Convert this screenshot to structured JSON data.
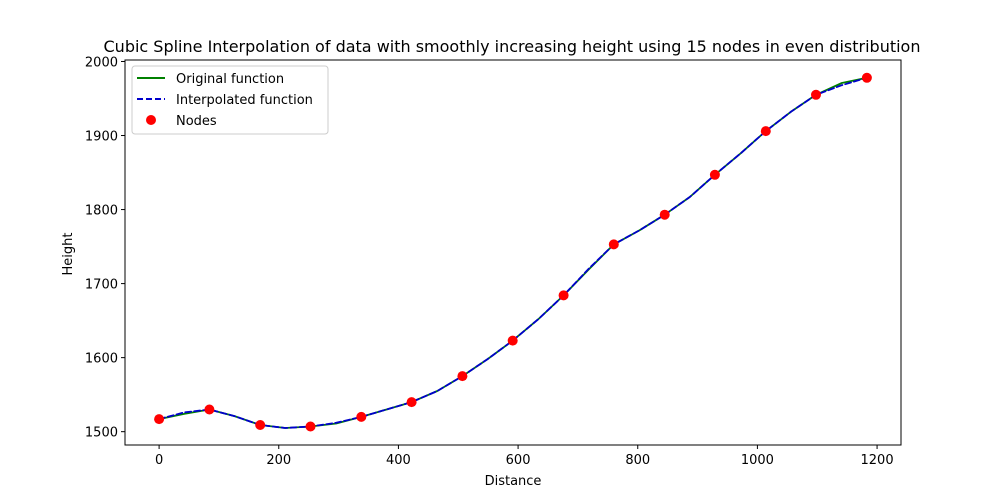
{
  "chart_data": {
    "type": "line",
    "title": "Cubic Spline Interpolation of data with smoothly increasing height using 15 nodes in even distribution",
    "xlabel": "Distance",
    "ylabel": "Height",
    "xlim": [
      -57,
      1240
    ],
    "ylim": [
      1482,
      2002
    ],
    "xticks": [
      0,
      200,
      400,
      600,
      800,
      1000,
      1200
    ],
    "yticks": [
      1500,
      1600,
      1700,
      1800,
      1900,
      2000
    ],
    "grid": false,
    "legend_position": "top-left",
    "series": [
      {
        "name": "Original function",
        "style": "solid",
        "color": "#008000",
        "x": [
          0,
          42,
          84,
          126,
          169,
          211,
          253,
          296,
          338,
          380,
          422,
          465,
          507,
          549,
          591,
          634,
          676,
          718,
          760,
          803,
          845,
          887,
          929,
          972,
          1014,
          1056,
          1098,
          1141,
          1183
        ],
        "y": [
          1517,
          1524,
          1530,
          1521,
          1509,
          1505,
          1507,
          1511,
          1520,
          1530,
          1540,
          1555,
          1575,
          1598,
          1623,
          1652,
          1684,
          1719,
          1753,
          1772,
          1793,
          1817,
          1847,
          1876,
          1906,
          1932,
          1955,
          1971,
          1978
        ]
      },
      {
        "name": "Interpolated function",
        "style": "dashed",
        "color": "#0000cc",
        "x": [
          0,
          42,
          84,
          126,
          169,
          211,
          253,
          296,
          338,
          380,
          422,
          465,
          507,
          549,
          591,
          634,
          676,
          718,
          760,
          803,
          845,
          887,
          929,
          972,
          1014,
          1056,
          1098,
          1141,
          1183
        ],
        "y": [
          1517,
          1526,
          1530,
          1521,
          1509,
          1505,
          1507,
          1512,
          1520,
          1530,
          1540,
          1555,
          1575,
          1598,
          1623,
          1652,
          1684,
          1720,
          1753,
          1772,
          1793,
          1817,
          1847,
          1876,
          1906,
          1932,
          1955,
          1968,
          1978
        ]
      },
      {
        "name": "Nodes",
        "style": "scatter",
        "color": "#ff0000",
        "x": [
          0,
          84,
          169,
          253,
          338,
          422,
          507,
          591,
          676,
          760,
          845,
          929,
          1014,
          1098,
          1183
        ],
        "y": [
          1517,
          1530,
          1509,
          1507,
          1520,
          1540,
          1575,
          1623,
          1684,
          1753,
          1793,
          1847,
          1906,
          1955,
          1978
        ]
      }
    ]
  }
}
